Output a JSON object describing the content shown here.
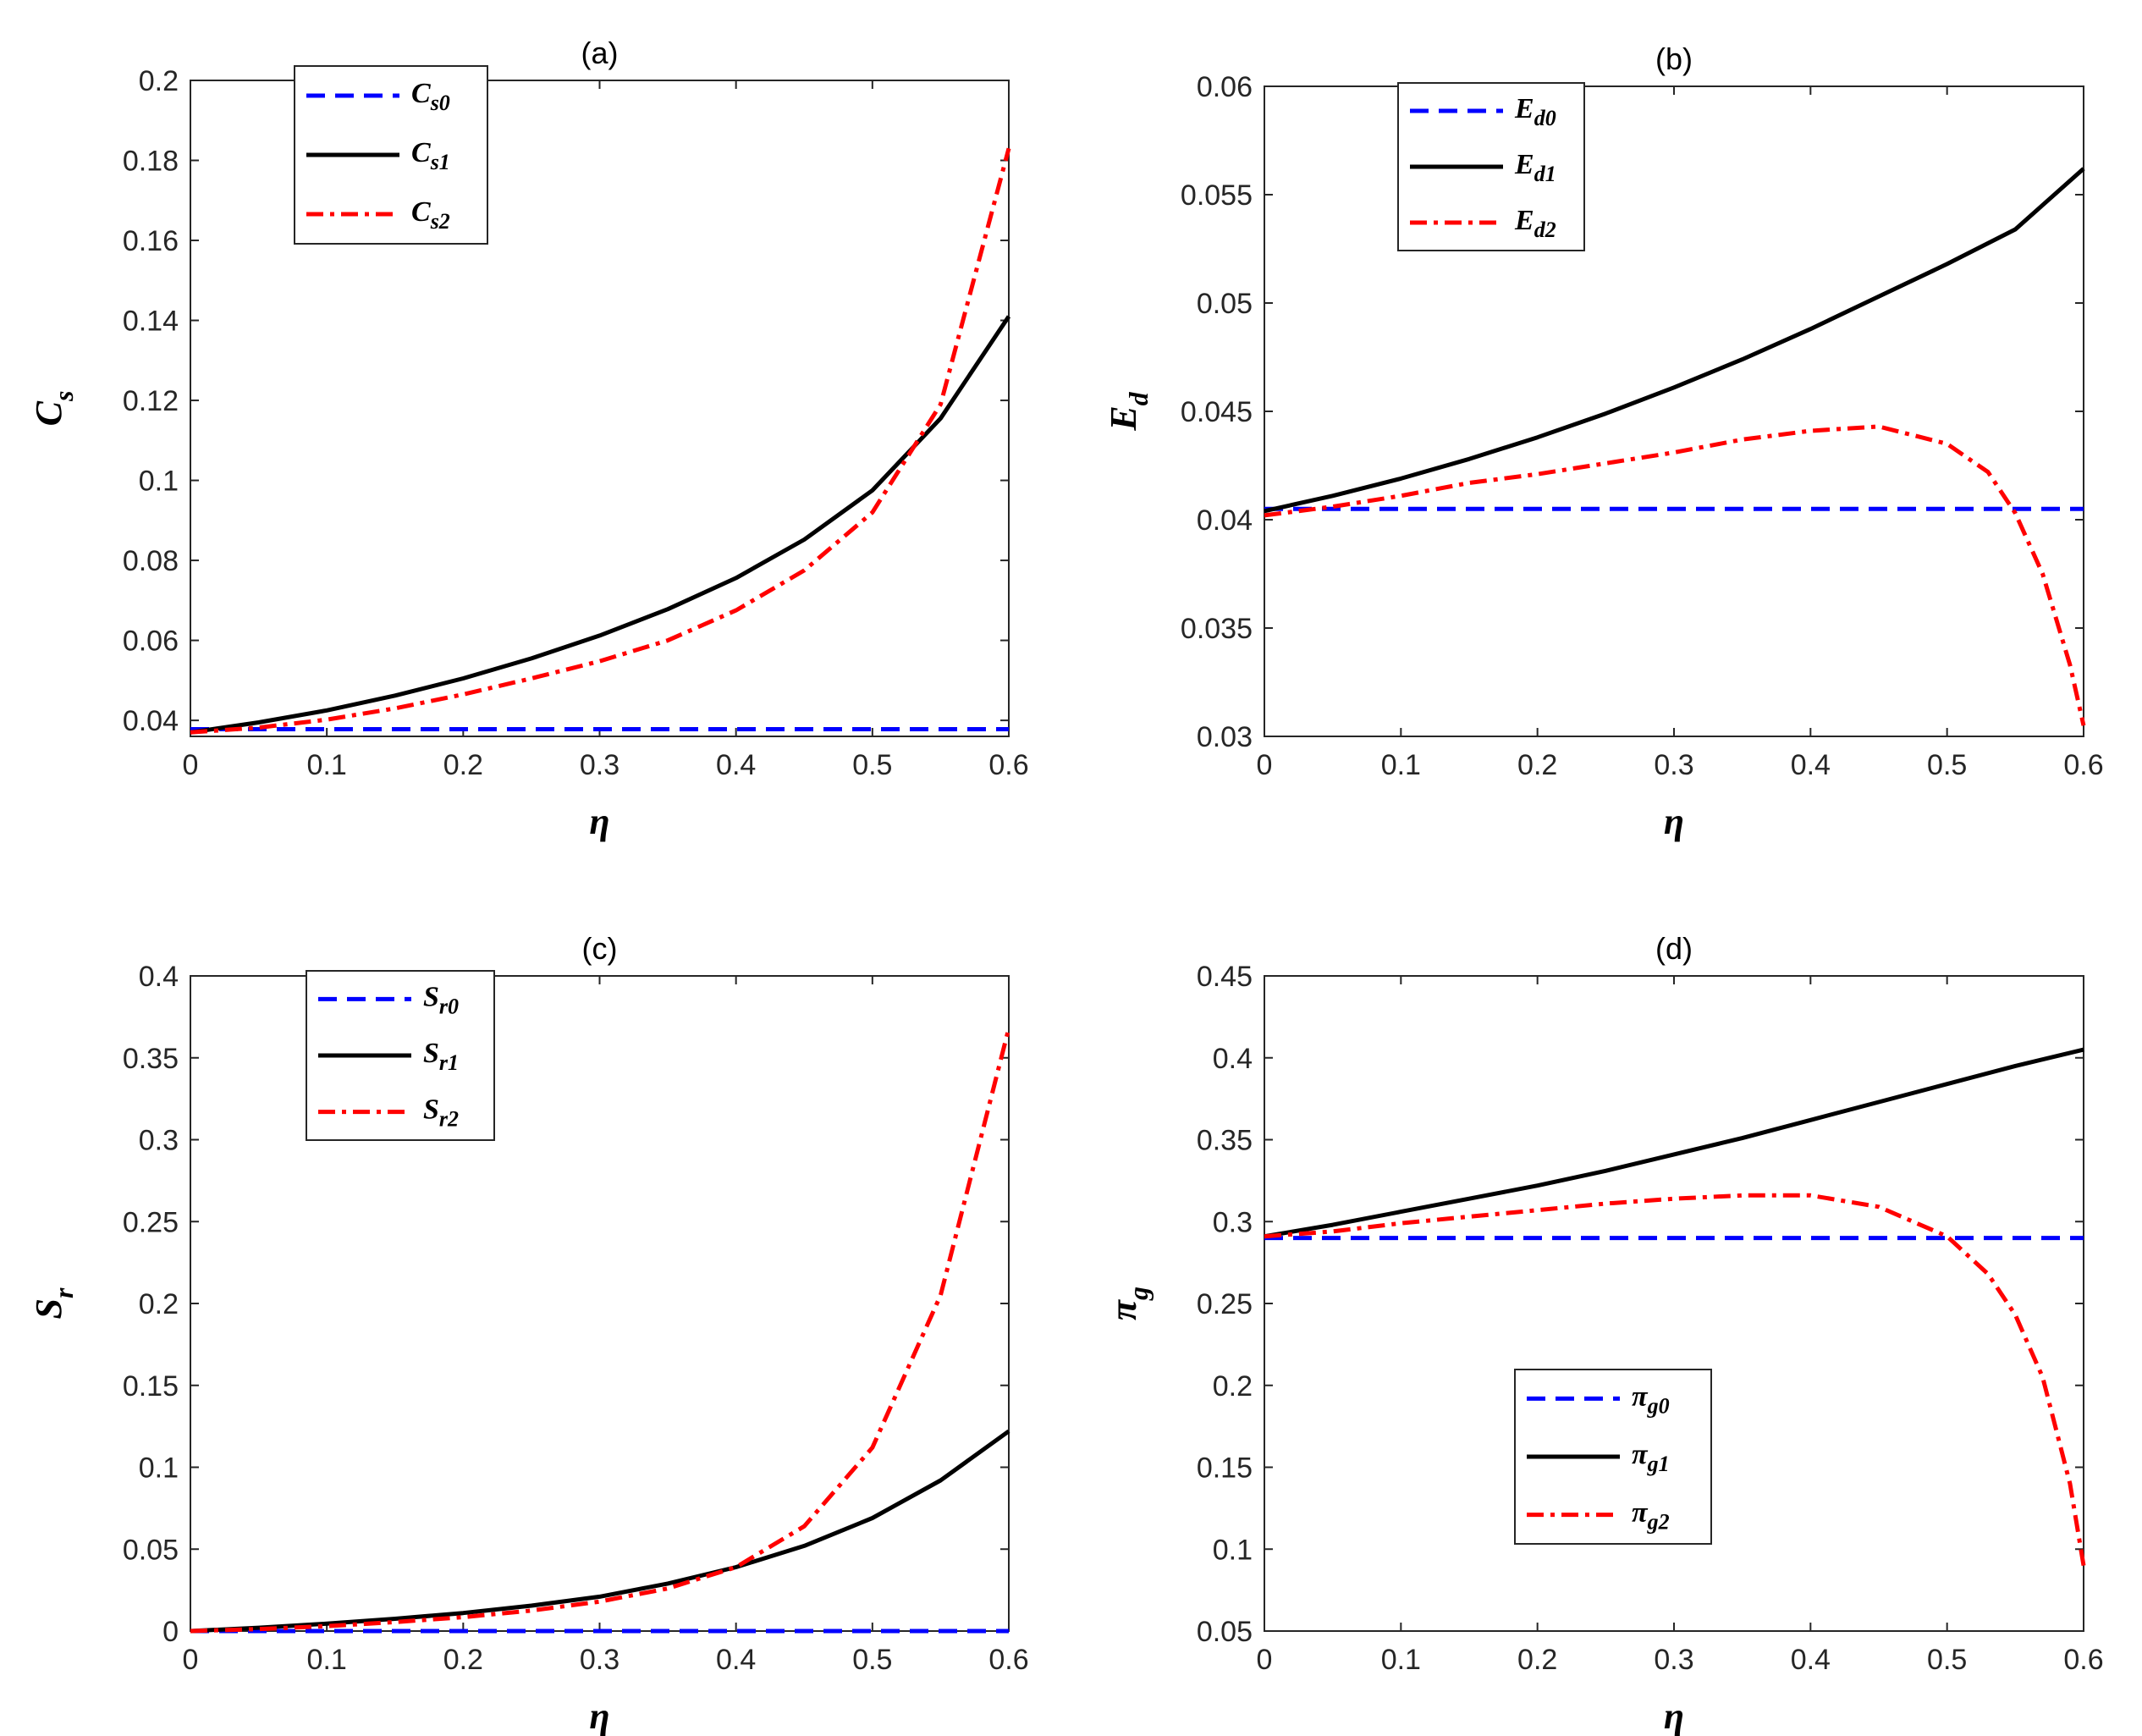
{
  "colors": {
    "s0": "#0000ff",
    "s1": "#000000",
    "s2": "#ff0000"
  },
  "chart_data": [
    {
      "type": "line",
      "title": "(a)",
      "xlabel": "η",
      "ylabel": {
        "main": "C",
        "sub": "s"
      },
      "xlim": [
        0,
        0.6
      ],
      "ylim": [
        0.036,
        0.2
      ],
      "xticks": [
        "0",
        "0.1",
        "0.2",
        "0.3",
        "0.4",
        "0.5",
        "0.6"
      ],
      "yticks": [
        "0.04",
        "0.06",
        "0.08",
        "0.1",
        "0.12",
        "0.14",
        "0.16",
        "0.18",
        "0.2"
      ],
      "legend_position": "top-left",
      "series": [
        {
          "name": {
            "main": "C",
            "sub": "s0"
          },
          "style": "dashed",
          "x": [
            0,
            0.6
          ],
          "y": [
            0.0378,
            0.0378
          ]
        },
        {
          "name": {
            "main": "C",
            "sub": "s1"
          },
          "style": "solid",
          "x": [
            0,
            0.05,
            0.1,
            0.15,
            0.2,
            0.25,
            0.3,
            0.35,
            0.4,
            0.45,
            0.5,
            0.55,
            0.6
          ],
          "y": [
            0.037,
            0.0395,
            0.0425,
            0.0462,
            0.0505,
            0.0555,
            0.0612,
            0.0678,
            0.0756,
            0.0852,
            0.0975,
            0.1155,
            0.141
          ]
        },
        {
          "name": {
            "main": "C",
            "sub": "s2"
          },
          "style": "dashdot",
          "x": [
            0,
            0.05,
            0.1,
            0.15,
            0.2,
            0.25,
            0.3,
            0.35,
            0.4,
            0.45,
            0.5,
            0.55,
            0.6
          ],
          "y": [
            0.037,
            0.0382,
            0.0402,
            0.043,
            0.0465,
            0.0505,
            0.0548,
            0.06,
            0.0675,
            0.0775,
            0.092,
            0.119,
            0.183
          ]
        }
      ]
    },
    {
      "type": "line",
      "title": "(b)",
      "xlabel": "η",
      "ylabel": {
        "main": "E",
        "sub": "d"
      },
      "xlim": [
        0,
        0.6
      ],
      "ylim": [
        0.03,
        0.06
      ],
      "xticks": [
        "0",
        "0.1",
        "0.2",
        "0.3",
        "0.4",
        "0.5",
        "0.6"
      ],
      "yticks": [
        "0.03",
        "0.035",
        "0.04",
        "0.045",
        "0.05",
        "0.055",
        "0.06"
      ],
      "legend_position": "top-left",
      "series": [
        {
          "name": {
            "main": "E",
            "sub": "d0"
          },
          "style": "dashed",
          "x": [
            0,
            0.6
          ],
          "y": [
            0.0405,
            0.0405
          ]
        },
        {
          "name": {
            "main": "E",
            "sub": "d1"
          },
          "style": "solid",
          "x": [
            0,
            0.05,
            0.1,
            0.15,
            0.2,
            0.25,
            0.3,
            0.35,
            0.4,
            0.45,
            0.5,
            0.55,
            0.6
          ],
          "y": [
            0.0404,
            0.0411,
            0.0419,
            0.0428,
            0.0438,
            0.0449,
            0.0461,
            0.0474,
            0.0488,
            0.0503,
            0.0518,
            0.0534,
            0.0562
          ]
        },
        {
          "name": {
            "main": "E",
            "sub": "d2"
          },
          "style": "dashdot",
          "x": [
            0,
            0.05,
            0.1,
            0.15,
            0.2,
            0.25,
            0.3,
            0.35,
            0.4,
            0.45,
            0.5,
            0.53,
            0.55,
            0.57,
            0.59,
            0.6
          ],
          "y": [
            0.0402,
            0.0406,
            0.0411,
            0.0417,
            0.0421,
            0.0426,
            0.0431,
            0.0437,
            0.0441,
            0.0443,
            0.0435,
            0.0422,
            0.0403,
            0.0375,
            0.0333,
            0.0305
          ]
        }
      ]
    },
    {
      "type": "line",
      "title": "(c)",
      "xlabel": "η",
      "ylabel": {
        "main": "S",
        "sub": "r"
      },
      "xlim": [
        0,
        0.6
      ],
      "ylim": [
        0,
        0.4
      ],
      "xticks": [
        "0",
        "0.1",
        "0.2",
        "0.3",
        "0.4",
        "0.5",
        "0.6"
      ],
      "yticks": [
        "0",
        "0.05",
        "0.1",
        "0.15",
        "0.2",
        "0.25",
        "0.3",
        "0.35",
        "0.4"
      ],
      "legend_position": "top-left",
      "series": [
        {
          "name": {
            "main": "S",
            "sub": "r0"
          },
          "style": "dashed",
          "x": [
            0,
            0.6
          ],
          "y": [
            0,
            0
          ]
        },
        {
          "name": {
            "main": "S",
            "sub": "r1"
          },
          "style": "solid",
          "x": [
            0,
            0.05,
            0.1,
            0.15,
            0.2,
            0.25,
            0.3,
            0.35,
            0.4,
            0.45,
            0.5,
            0.55,
            0.6
          ],
          "y": [
            0,
            0.002,
            0.0045,
            0.0075,
            0.011,
            0.0155,
            0.021,
            0.029,
            0.039,
            0.052,
            0.069,
            0.092,
            0.122
          ]
        },
        {
          "name": {
            "main": "S",
            "sub": "r2"
          },
          "style": "dashdot",
          "x": [
            0,
            0.05,
            0.1,
            0.15,
            0.2,
            0.25,
            0.3,
            0.35,
            0.4,
            0.45,
            0.5,
            0.55,
            0.6
          ],
          "y": [
            0,
            0.0012,
            0.003,
            0.0055,
            0.0085,
            0.0125,
            0.018,
            0.026,
            0.039,
            0.064,
            0.112,
            0.205,
            0.368
          ]
        }
      ]
    },
    {
      "type": "line",
      "title": "(d)",
      "xlabel": "η",
      "ylabel": {
        "main": "π",
        "sub": "g"
      },
      "xlim": [
        0,
        0.6
      ],
      "ylim": [
        0.05,
        0.45
      ],
      "xticks": [
        "0",
        "0.1",
        "0.2",
        "0.3",
        "0.4",
        "0.5",
        "0.6"
      ],
      "yticks": [
        "0.05",
        "0.1",
        "0.15",
        "0.2",
        "0.25",
        "0.3",
        "0.35",
        "0.4",
        "0.45"
      ],
      "legend_position": "bottom-center",
      "series": [
        {
          "name": {
            "main": "π",
            "sub": "g0"
          },
          "style": "dashed",
          "x": [
            0,
            0.6
          ],
          "y": [
            0.29,
            0.29
          ]
        },
        {
          "name": {
            "main": "π",
            "sub": "g1"
          },
          "style": "solid",
          "x": [
            0,
            0.05,
            0.1,
            0.15,
            0.2,
            0.25,
            0.3,
            0.35,
            0.4,
            0.45,
            0.5,
            0.55,
            0.6
          ],
          "y": [
            0.291,
            0.298,
            0.306,
            0.314,
            0.322,
            0.331,
            0.341,
            0.351,
            0.362,
            0.373,
            0.384,
            0.395,
            0.405
          ]
        },
        {
          "name": {
            "main": "π",
            "sub": "g2"
          },
          "style": "dashdot",
          "x": [
            0,
            0.05,
            0.1,
            0.15,
            0.2,
            0.25,
            0.3,
            0.35,
            0.4,
            0.45,
            0.5,
            0.53,
            0.55,
            0.57,
            0.59,
            0.6
          ],
          "y": [
            0.291,
            0.294,
            0.299,
            0.303,
            0.307,
            0.311,
            0.314,
            0.316,
            0.316,
            0.309,
            0.291,
            0.268,
            0.243,
            0.205,
            0.14,
            0.09
          ]
        }
      ]
    }
  ]
}
